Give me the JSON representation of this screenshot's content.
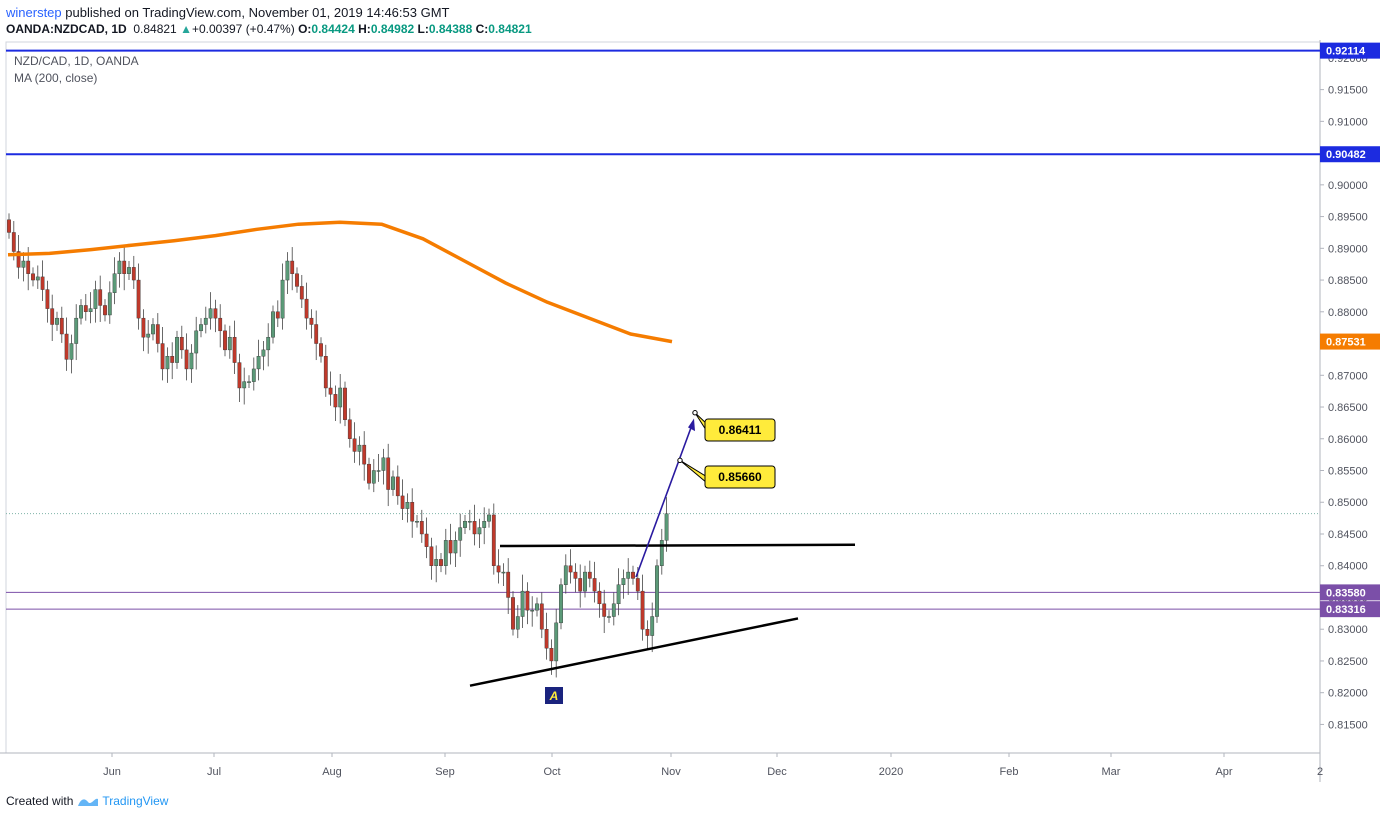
{
  "header": {
    "author": "winerstep",
    "published": " published on TradingView.com, November 01, 2019 14:46:53 GMT",
    "symbol": "OANDA:NZDCAD, 1D",
    "last": "0.84821",
    "change": "+0.00397 (+0.47%)",
    "o_label": "O:",
    "o_value": "0.84424",
    "h_label": "H:",
    "h_value": "0.84982",
    "l_label": "L:",
    "l_value": "0.84388",
    "c_label": "C:",
    "c_value": "0.84821"
  },
  "legend": {
    "title": "NZD/CAD, 1D, OANDA",
    "indicator": "MA (200, close)"
  },
  "footer": {
    "created_with": "Created with",
    "brand": "TradingView"
  },
  "colors": {
    "up": "#5b9a78",
    "down": "#c0392b",
    "ma": "#f57c00",
    "resistance": "#1c2be0",
    "support": "#7b4fa8",
    "trend": "#000000",
    "projection": "#2a1aa0",
    "callout": "#ffeb3b"
  },
  "chart_data": {
    "type": "candlestick",
    "title": "NZD/CAD, 1D, OANDA",
    "ylim": [
      0.8105,
      0.9225
    ],
    "x_ticks": [
      "Jun",
      "Jul",
      "Aug",
      "Sep",
      "Oct",
      "Nov",
      "Dec",
      "2020",
      "Feb",
      "Mar",
      "Apr",
      "2"
    ],
    "y_ticks": [
      "0.92000",
      "0.91500",
      "0.91000",
      "0.90500",
      "0.90000",
      "0.89500",
      "0.89000",
      "0.88500",
      "0.88000",
      "0.87500",
      "0.87000",
      "0.86500",
      "0.86000",
      "0.85500",
      "0.85000",
      "0.84500",
      "0.84000",
      "0.83500",
      "0.83000",
      "0.82500",
      "0.82000",
      "0.81500"
    ],
    "horizontal_levels": [
      {
        "value": 0.92114,
        "label": "0.92114",
        "kind": "resistance"
      },
      {
        "value": 0.90482,
        "label": "0.90482",
        "kind": "resistance"
      },
      {
        "value": 0.8358,
        "label": "0.83580",
        "kind": "support"
      },
      {
        "value": 0.83316,
        "label": "0.83316",
        "kind": "support"
      }
    ],
    "ma_last": {
      "value": 0.87531,
      "label": "0.87531"
    },
    "last_price": 0.84821,
    "targets": [
      {
        "value": 0.86411,
        "label": "0.86411"
      },
      {
        "value": 0.8566,
        "label": "0.85660"
      }
    ],
    "pattern_label": "A",
    "closes": [
      0.8925,
      0.8895,
      0.887,
      0.888,
      0.886,
      0.885,
      0.8855,
      0.8835,
      0.8805,
      0.878,
      0.879,
      0.8765,
      0.8725,
      0.875,
      0.879,
      0.881,
      0.88,
      0.8805,
      0.8835,
      0.881,
      0.8795,
      0.883,
      0.886,
      0.888,
      0.886,
      0.887,
      0.885,
      0.879,
      0.876,
      0.8765,
      0.878,
      0.875,
      0.871,
      0.873,
      0.872,
      0.876,
      0.874,
      0.871,
      0.8735,
      0.877,
      0.878,
      0.879,
      0.8805,
      0.879,
      0.877,
      0.874,
      0.876,
      0.872,
      0.868,
      0.869,
      0.869,
      0.871,
      0.873,
      0.874,
      0.876,
      0.88,
      0.879,
      0.885,
      0.888,
      0.886,
      0.884,
      0.882,
      0.879,
      0.878,
      0.875,
      0.873,
      0.868,
      0.867,
      0.865,
      0.868,
      0.863,
      0.86,
      0.858,
      0.859,
      0.856,
      0.853,
      0.855,
      0.855,
      0.857,
      0.852,
      0.854,
      0.851,
      0.849,
      0.85,
      0.847,
      0.847,
      0.845,
      0.843,
      0.84,
      0.841,
      0.84,
      0.844,
      0.842,
      0.844,
      0.846,
      0.847,
      0.847,
      0.845,
      0.846,
      0.847,
      0.848,
      0.84,
      0.839,
      0.839,
      0.835,
      0.83,
      0.832,
      0.836,
      0.833,
      0.833,
      0.834,
      0.83,
      0.827,
      0.825,
      0.831,
      0.837,
      0.84,
      0.839,
      0.838,
      0.836,
      0.839,
      0.838,
      0.836,
      0.834,
      0.832,
      0.832,
      0.834,
      0.837,
      0.838,
      0.839,
      0.838,
      0.836,
      0.83,
      0.829,
      0.832,
      0.84,
      0.844,
      0.8482
    ]
  }
}
